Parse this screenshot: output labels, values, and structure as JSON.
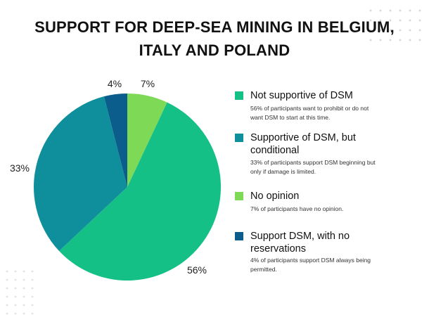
{
  "title_lines": [
    "SUPPORT FOR DEEP-SEA MINING IN BELGIUM,",
    "ITALY AND POLAND"
  ],
  "colors": {
    "not_supportive": "#14c086",
    "conditional": "#0f8e9b",
    "no_opinion": "#7ed957",
    "no_reservations": "#0b5e8c"
  },
  "chart_data": {
    "type": "pie",
    "slices": [
      {
        "label": "No opinion",
        "value": 7,
        "label_text": "7%",
        "color": "#7ed957"
      },
      {
        "label": "Not supportive of DSM",
        "value": 56,
        "label_text": "56%",
        "color": "#14c086"
      },
      {
        "label": "Supportive of DSM, but conditional",
        "value": 33,
        "label_text": "33%",
        "color": "#0f8e9b"
      },
      {
        "label": "Support DSM, with no reservations",
        "value": 4,
        "label_text": "4%",
        "color": "#0b5e8c"
      }
    ]
  },
  "legend": [
    {
      "label_lines": [
        "Not supportive of DSM"
      ],
      "desc_lines": [
        "56% of participants want to prohibit or do not",
        "want DSM to start at this time."
      ],
      "color": "#14c086"
    },
    {
      "label_lines": [
        "Supportive of DSM, but",
        "conditional"
      ],
      "desc_lines": [
        "33% of participants support DSM beginning but",
        "only if damage is limited."
      ],
      "color": "#0f8e9b"
    },
    {
      "label_lines": [
        "No opinion"
      ],
      "desc_lines": [
        "7% of participants have no opinion."
      ],
      "color": "#7ed957"
    },
    {
      "label_lines": [
        "Support DSM, with no",
        "reservations"
      ],
      "desc_lines": [
        "4% of participants support DSM always being",
        "permitted."
      ],
      "color": "#0b5e8c"
    }
  ]
}
